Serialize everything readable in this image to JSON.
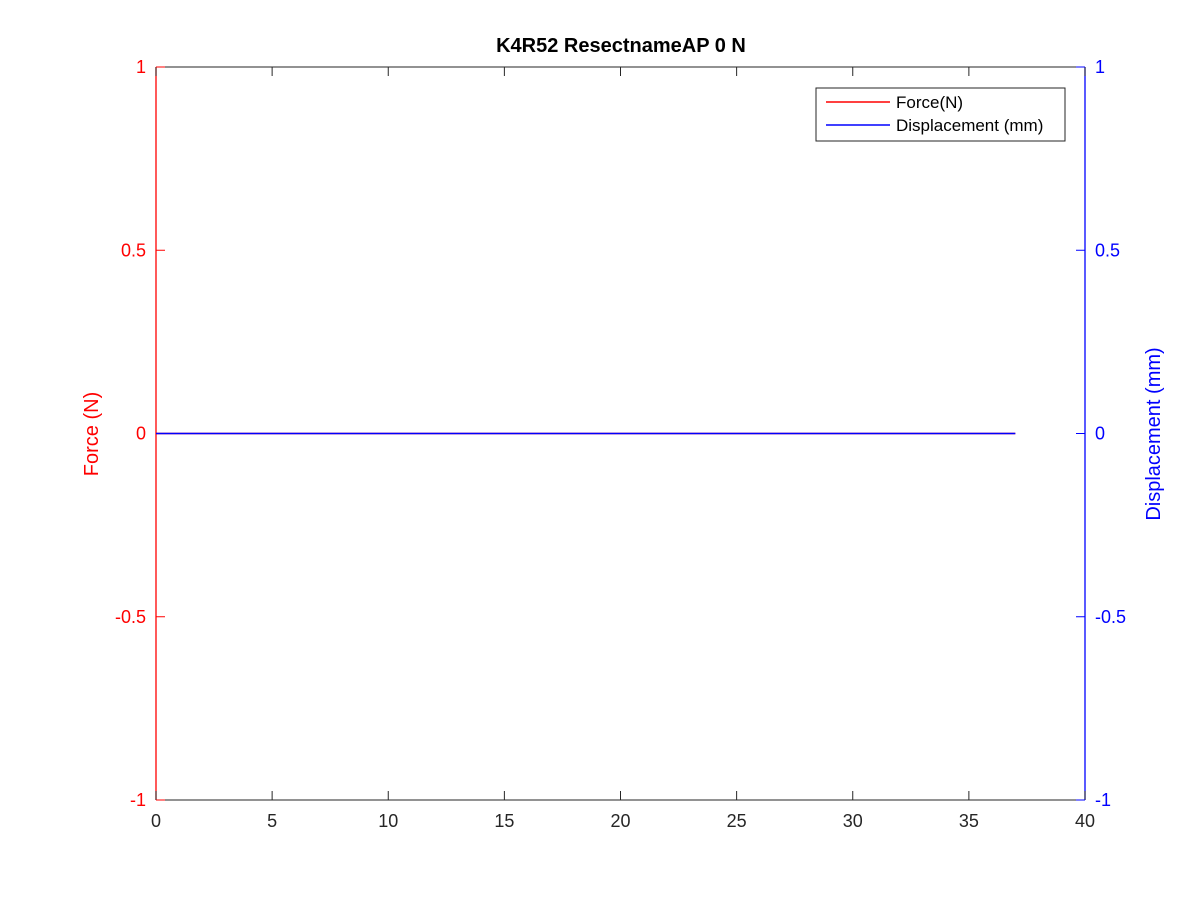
{
  "chart_data": {
    "type": "line",
    "title": "K4R52 ResectnameAP 0 N",
    "xlabel": "",
    "xlim": [
      0,
      40
    ],
    "x_ticks": [
      0,
      5,
      10,
      15,
      20,
      25,
      30,
      35,
      40
    ],
    "left_axis": {
      "label": "Force (N)",
      "ylim": [
        -1,
        1
      ],
      "ticks": [
        -1,
        -0.5,
        0,
        0.5,
        1
      ],
      "tick_labels": [
        "-1",
        "-0.5",
        "0",
        "0.5",
        "1"
      ],
      "color": "#ff0000"
    },
    "right_axis": {
      "label": "Displacement (mm)",
      "ylim": [
        -1,
        1
      ],
      "ticks": [
        -1,
        -0.5,
        0,
        0.5,
        1
      ],
      "tick_labels": [
        "-1",
        "-0.5",
        "0",
        "0.5",
        "1"
      ],
      "color": "#0000ff"
    },
    "grid": false,
    "legend_position": "top-right",
    "series": [
      {
        "name": "Force(N)",
        "axis": "left",
        "color": "#ff0000",
        "x": [
          0,
          37
        ],
        "y": [
          0,
          0
        ]
      },
      {
        "name": "Displacement (mm)",
        "axis": "right",
        "color": "#0000ff",
        "x": [
          0,
          37
        ],
        "y": [
          0,
          0
        ]
      }
    ]
  }
}
